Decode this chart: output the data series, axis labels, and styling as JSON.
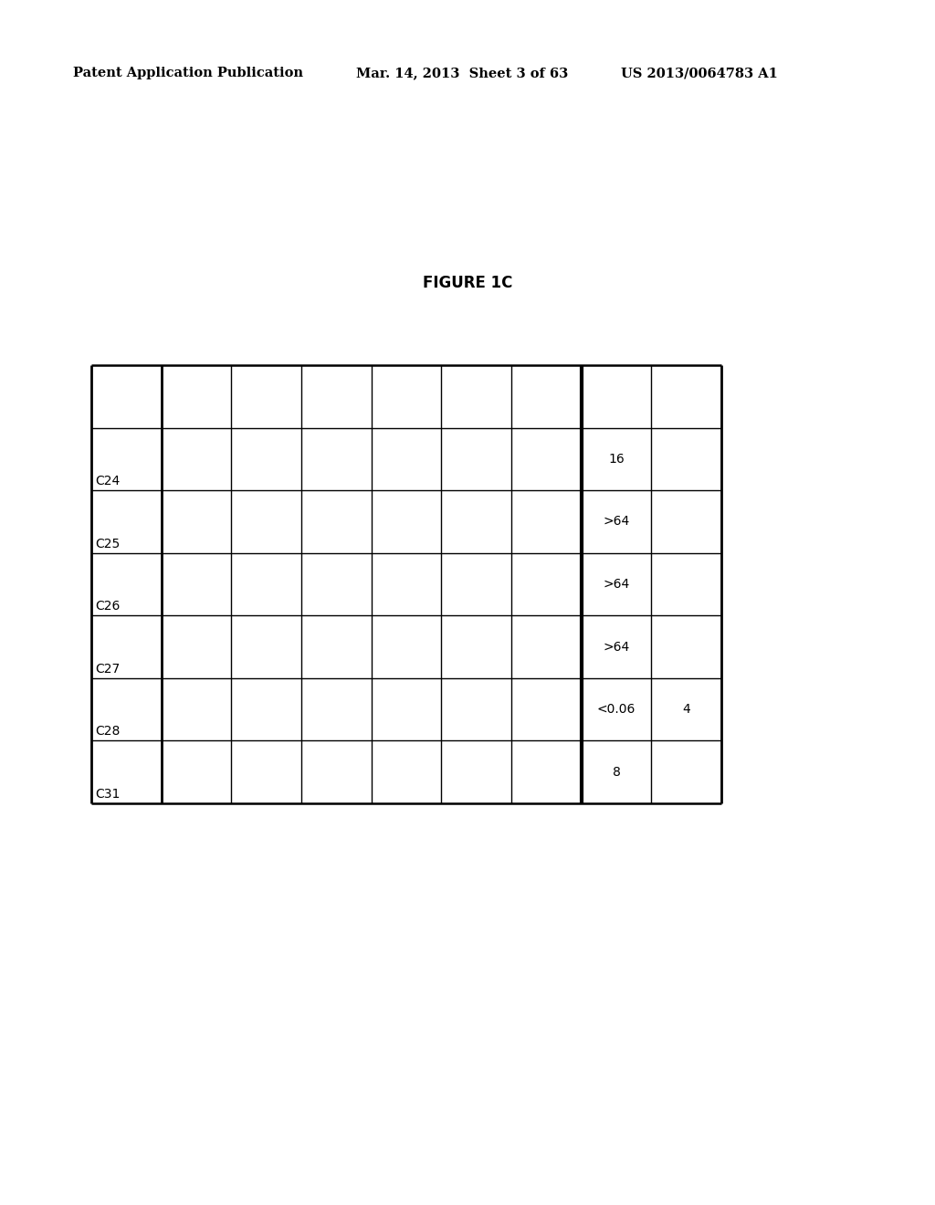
{
  "header_left": "Patent Application Publication",
  "header_mid": "Mar. 14, 2013  Sheet 3 of 63",
  "header_right": "US 2013/0064783 A1",
  "figure_title": "FIGURE 1C",
  "num_cols": 9,
  "num_rows": 7,
  "row_labels": [
    "",
    "C24",
    "C25",
    "C26",
    "C27",
    "C28",
    "C31"
  ],
  "col_data": {
    "col7": [
      "",
      "16",
      ">64",
      ">64",
      ">64",
      "<0.06",
      "8"
    ],
    "col8": [
      "",
      "",
      "",
      "",
      "",
      "4",
      ""
    ]
  },
  "bg_color": "#ffffff",
  "text_color": "#000000",
  "line_color": "#000000",
  "header_fontsize": 10.5,
  "title_fontsize": 12,
  "cell_fontsize": 10
}
